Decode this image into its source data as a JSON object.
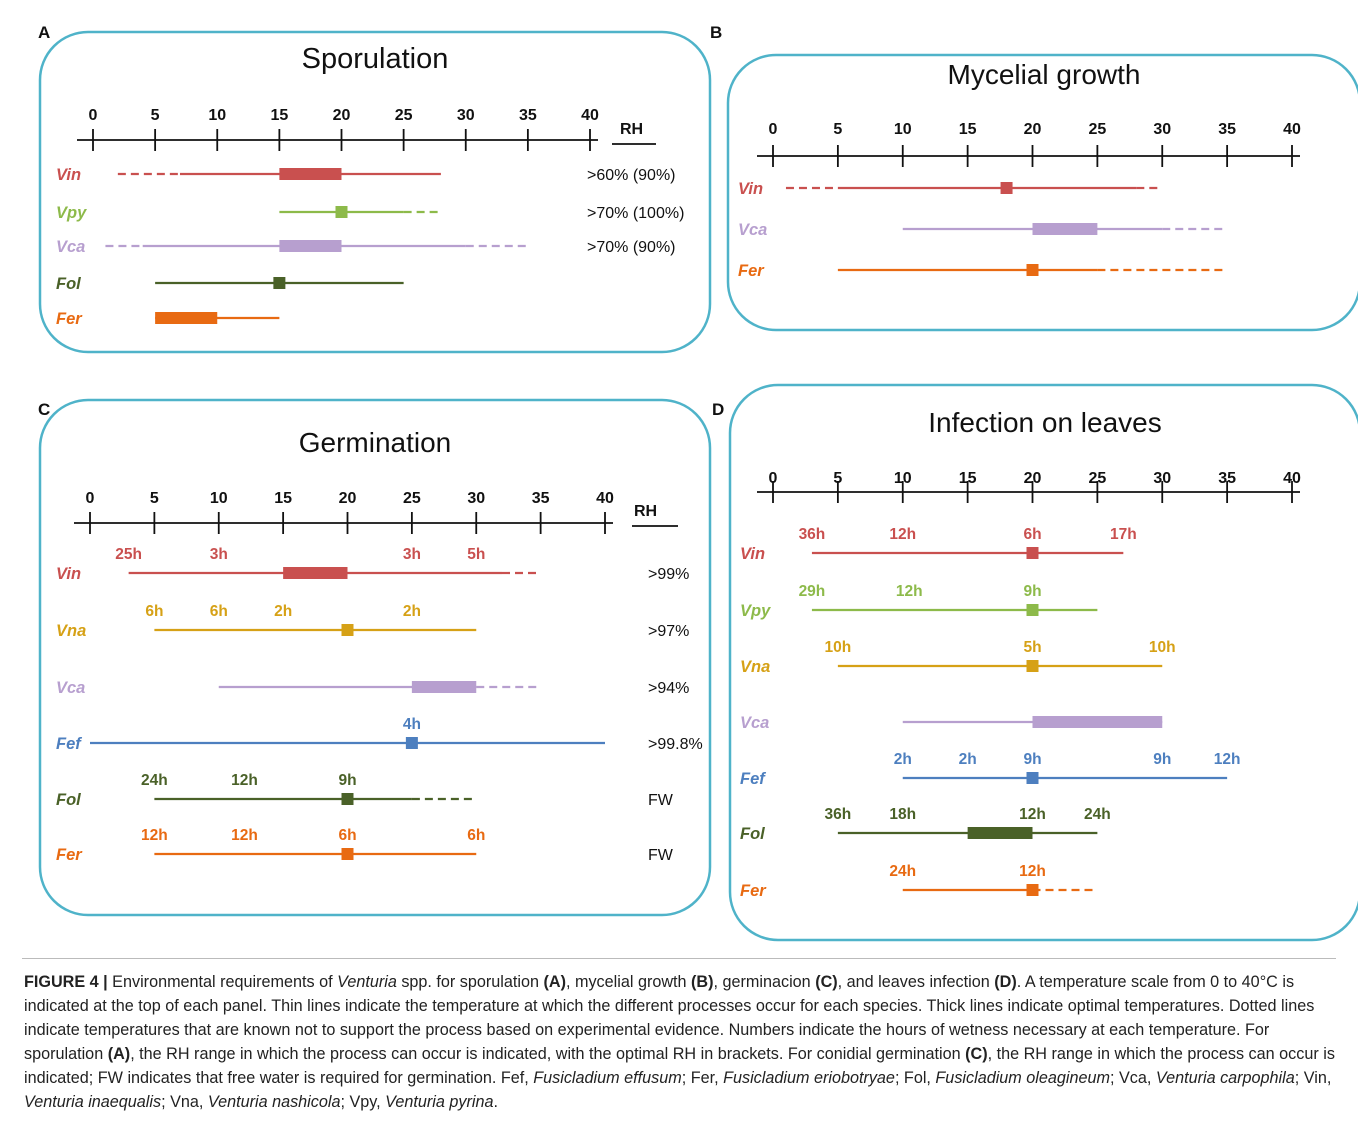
{
  "colors": {
    "Vin": "#c9504f",
    "Vpy": "#8dba4a",
    "Vca": "#b79fcf",
    "Fol": "#4a6128",
    "Fer": "#e86a12",
    "Vna": "#d6a116",
    "Fef": "#4d7fbf",
    "frame": "#4fb3c9"
  },
  "axis_ticks": [
    "0",
    "5",
    "10",
    "15",
    "20",
    "25",
    "30",
    "35",
    "40"
  ],
  "panels": [
    {
      "id": "A",
      "title": "Sporulation",
      "rh_header": "RH",
      "rows": [
        {
          "label": "Vin",
          "thin": [
            7,
            28
          ],
          "thick": [
            15,
            20
          ],
          "dashed": [
            [
              2,
              7
            ]
          ],
          "marker": null,
          "rh": ">60% (90%)",
          "hours": []
        },
        {
          "label": "Vpy",
          "thin": [
            15,
            25
          ],
          "thick": null,
          "dashed": [
            [
              25,
              28
            ]
          ],
          "marker": 20,
          "rh": ">70% (100%)",
          "hours": []
        },
        {
          "label": "Vca",
          "thin": [
            4,
            30
          ],
          "thick": [
            15,
            20
          ],
          "dashed": [
            [
              1,
              4
            ],
            [
              30,
              35
            ]
          ],
          "marker": null,
          "rh": ">70% (90%)",
          "hours": []
        },
        {
          "label": "Fol",
          "thin": [
            5,
            25
          ],
          "thick": null,
          "dashed": [],
          "marker": 15,
          "rh": "",
          "hours": []
        },
        {
          "label": "Fer",
          "thin": [
            5,
            15
          ],
          "thick": [
            5,
            10
          ],
          "dashed": [],
          "marker": null,
          "rh": "",
          "hours": []
        }
      ]
    },
    {
      "id": "B",
      "title": "Mycelial growth",
      "rh_header": "",
      "rows": [
        {
          "label": "Vin",
          "thin": [
            5,
            28
          ],
          "thick": null,
          "dashed": [
            [
              1,
              5
            ],
            [
              28,
              30
            ]
          ],
          "marker": 18,
          "rh": "",
          "hours": []
        },
        {
          "label": "Vca",
          "thin": [
            10,
            30
          ],
          "thick": [
            20,
            25
          ],
          "dashed": [
            [
              30,
              35
            ]
          ],
          "marker": null,
          "rh": "",
          "hours": []
        },
        {
          "label": "Fer",
          "thin": [
            5,
            25
          ],
          "thick": null,
          "dashed": [
            [
              25,
              35
            ]
          ],
          "marker": 20,
          "rh": "",
          "hours": []
        }
      ]
    },
    {
      "id": "C",
      "title": "Germination",
      "rh_header": "RH",
      "rows": [
        {
          "label": "Vin",
          "thin": [
            3,
            32
          ],
          "thick": [
            15,
            20
          ],
          "dashed": [
            [
              32,
              35
            ]
          ],
          "marker": null,
          "rh": ">99%",
          "hours": [
            {
              "t": "25h",
              "x": 3
            },
            {
              "t": "3h",
              "x": 10
            },
            {
              "t": "3h",
              "x": 25
            },
            {
              "t": "5h",
              "x": 30
            }
          ]
        },
        {
          "label": "Vna",
          "thin": [
            5,
            30
          ],
          "thick": null,
          "dashed": [],
          "marker": 20,
          "rh": ">97%",
          "hours": [
            {
              "t": "6h",
              "x": 5
            },
            {
              "t": "6h",
              "x": 10
            },
            {
              "t": "2h",
              "x": 15
            },
            {
              "t": "2h",
              "x": 25
            }
          ]
        },
        {
          "label": "Vca",
          "thin": [
            10,
            30
          ],
          "thick": [
            25,
            30
          ],
          "dashed": [
            [
              30,
              35
            ]
          ],
          "marker": null,
          "rh": ">94%",
          "hours": []
        },
        {
          "label": "Fef",
          "thin": [
            0,
            40
          ],
          "thick": null,
          "dashed": [],
          "marker": 25,
          "rh": ">99.8%",
          "hours": [
            {
              "t": "4h",
              "x": 25
            }
          ]
        },
        {
          "label": "Fol",
          "thin": [
            5,
            25
          ],
          "thick": null,
          "dashed": [
            [
              25,
              30
            ]
          ],
          "marker": 20,
          "rh": "FW",
          "hours": [
            {
              "t": "24h",
              "x": 5
            },
            {
              "t": "12h",
              "x": 12
            },
            {
              "t": "9h",
              "x": 20
            }
          ]
        },
        {
          "label": "Fer",
          "thin": [
            5,
            30
          ],
          "thick": null,
          "dashed": [],
          "marker": 20,
          "rh": "FW",
          "hours": [
            {
              "t": "12h",
              "x": 5
            },
            {
              "t": "12h",
              "x": 12
            },
            {
              "t": "6h",
              "x": 20
            },
            {
              "t": "6h",
              "x": 30
            }
          ]
        }
      ]
    },
    {
      "id": "D",
      "title": "Infection on leaves",
      "rh_header": "",
      "rows": [
        {
          "label": "Vin",
          "thin": [
            3,
            27
          ],
          "thick": null,
          "dashed": [],
          "marker": 20,
          "rh": "",
          "hours": [
            {
              "t": "36h",
              "x": 3
            },
            {
              "t": "12h",
              "x": 10
            },
            {
              "t": "6h",
              "x": 20
            },
            {
              "t": "17h",
              "x": 27
            }
          ]
        },
        {
          "label": "Vpy",
          "thin": [
            3,
            25
          ],
          "thick": null,
          "dashed": [],
          "marker": 20,
          "rh": "",
          "hours": [
            {
              "t": "29h",
              "x": 3
            },
            {
              "t": "12h",
              "x": 10.5
            },
            {
              "t": "9h",
              "x": 20
            }
          ]
        },
        {
          "label": "Vna",
          "thin": [
            5,
            30
          ],
          "thick": null,
          "dashed": [],
          "marker": 20,
          "rh": "",
          "hours": [
            {
              "t": "10h",
              "x": 5
            },
            {
              "t": "5h",
              "x": 20
            },
            {
              "t": "10h",
              "x": 30
            }
          ]
        },
        {
          "label": "Vca",
          "thin": [
            10,
            30
          ],
          "thick": [
            20,
            30
          ],
          "dashed": [],
          "marker": null,
          "rh": "",
          "hours": []
        },
        {
          "label": "Fef",
          "thin": [
            10,
            35
          ],
          "thick": null,
          "dashed": [],
          "marker": 20,
          "rh": "",
          "hours": [
            {
              "t": "2h",
              "x": 10
            },
            {
              "t": "2h",
              "x": 15
            },
            {
              "t": "9h",
              "x": 20
            },
            {
              "t": "9h",
              "x": 30
            },
            {
              "t": "12h",
              "x": 35
            }
          ]
        },
        {
          "label": "Fol",
          "thin": [
            5,
            25
          ],
          "thick": [
            15,
            20
          ],
          "dashed": [],
          "marker": null,
          "rh": "",
          "hours": [
            {
              "t": "36h",
              "x": 5
            },
            {
              "t": "18h",
              "x": 10
            },
            {
              "t": "12h",
              "x": 20
            },
            {
              "t": "24h",
              "x": 25
            }
          ]
        },
        {
          "label": "Fer",
          "thin": [
            10,
            20
          ],
          "thick": null,
          "dashed": [
            [
              20,
              25
            ]
          ],
          "marker": 20,
          "rh": "",
          "hours": [
            {
              "t": "24h",
              "x": 10
            },
            {
              "t": "12h",
              "x": 20
            }
          ]
        }
      ]
    }
  ],
  "caption": {
    "figure_label": "FIGURE 4 |",
    "text_1": " Environmental requirements of ",
    "genus": "Venturia",
    "text_2": " spp. for sporulation ",
    "ref_A": "(A)",
    "text_3": ", mycelial growth ",
    "ref_B": "(B)",
    "text_4": ", germinacion ",
    "ref_C": "(C)",
    "text_5": ", and leaves infection ",
    "ref_D": "(D)",
    "text_6": ". A temperature scale from 0 to 40°C is indicated at the top of each panel. Thin lines indicate the temperature at which the different processes occur for each species. Thick lines indicate optimal temperatures. Dotted lines indicate temperatures that are known not to support the process based on experimental evidence. Numbers indicate the hours of wetness necessary at each temperature. For sporulation ",
    "ref_A2": "(A)",
    "text_7": ", the RH range in which the process can occur is indicated, with the optimal RH in brackets. For conidial germination ",
    "ref_C2": "(C)",
    "text_8": ", the RH range in which the process can occur is indicated; FW indicates that free water is required for germination. Fef, ",
    "sp_fef": "Fusicladium effusum",
    "text_9": "; Fer, ",
    "sp_fer": "Fusicladium eriobotryae",
    "text_10": "; Fol, ",
    "sp_fol": "Fusicladium oleagineum",
    "text_11": "; Vca, ",
    "sp_vca": "Venturia carpophila",
    "text_12": "; Vin, ",
    "sp_vin": "Venturia inaequalis",
    "text_13": "; Vna, ",
    "sp_vna": "Venturia nashicola",
    "text_14": "; Vpy, ",
    "sp_vpy": "Venturia pyrina",
    "text_15": "."
  }
}
